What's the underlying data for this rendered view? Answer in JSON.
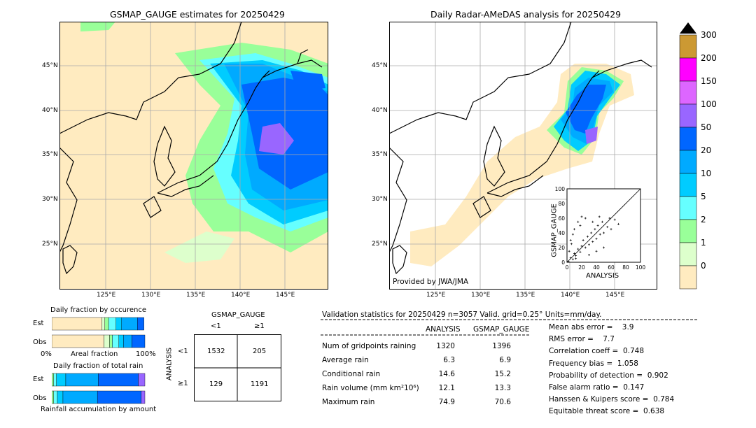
{
  "left_map": {
    "title": "GSMAP_GAUGE estimates for 20250429",
    "lat_labels": [
      "45°N",
      "40°N",
      "35°N",
      "30°N",
      "25°N"
    ],
    "lon_labels": [
      "125°E",
      "130°E",
      "135°E",
      "140°E",
      "145°E"
    ]
  },
  "right_map": {
    "title": "Daily Radar-AMeDAS analysis for 20250429",
    "lat_labels": [
      "45°N",
      "40°N",
      "35°N",
      "30°N",
      "25°N"
    ],
    "lon_labels": [
      "125°E",
      "130°E",
      "135°E",
      "140°E",
      "145°E"
    ],
    "credit": "Provided by JWA/JMA"
  },
  "colorbar": {
    "levels": [
      "300",
      "200",
      "150",
      "100",
      "50",
      "20",
      "10",
      "5",
      "2",
      "1",
      "0"
    ],
    "colors": [
      "#cc9933",
      "#ff00ff",
      "#dd66ff",
      "#9966ff",
      "#0066ff",
      "#00aaff",
      "#00ccff",
      "#66ffff",
      "#99ff99",
      "#ddffcc",
      "#ffebc0"
    ]
  },
  "scatter": {
    "xlabel": "ANALYSIS",
    "ylabel": "GSMAP_GAUGE",
    "ticks": [
      "0",
      "20",
      "40",
      "60",
      "80",
      "100"
    ]
  },
  "occurrence": {
    "title": "Daily fraction by occurence",
    "rows": [
      "Est",
      "Obs"
    ],
    "axis_left": "0%",
    "axis_mid": "Areal fraction",
    "axis_right": "100%"
  },
  "total_rain": {
    "title": "Daily fraction of total rain",
    "rows": [
      "Est",
      "Obs"
    ],
    "footer": "Rainfall accumulation by amount"
  },
  "contingency": {
    "col_header": "GSMAP_GAUGE",
    "col_lt": "<1",
    "col_ge": "≥1",
    "row_header": "ANALYSIS",
    "row_lt": "<1",
    "row_ge": "≥1",
    "cells": [
      "1532",
      "205",
      "129",
      "1191"
    ]
  },
  "validation": {
    "header": "Validation statistics for 20250429  n=3057 Valid. grid=0.25° Units=mm/day.",
    "col_analysis": "ANALYSIS",
    "col_gsmap": "GSMAP_GAUGE",
    "rows": [
      {
        "label": "Num of gridpoints raining",
        "analysis": "1320",
        "gsmap": "1396"
      },
      {
        "label": "Average rain",
        "analysis": "6.3",
        "gsmap": "6.9"
      },
      {
        "label": "Conditional rain",
        "analysis": "14.6",
        "gsmap": "15.2"
      },
      {
        "label": "Rain volume (mm km²10⁶)",
        "analysis": "12.1",
        "gsmap": "13.3"
      },
      {
        "label": "Maximum rain",
        "analysis": "74.9",
        "gsmap": "70.6"
      }
    ],
    "scores": [
      "Mean abs error =    3.9",
      "RMS error =    7.7",
      "Correlation coeff =  0.748",
      "Frequency bias =  1.058",
      "Probability of detection =  0.902",
      "False alarm ratio =  0.147",
      "Hanssen & Kuipers score =  0.784",
      "Equitable threat score =  0.638"
    ]
  },
  "chart_data": [
    {
      "type": "heatmap",
      "title": "GSMAP_GAUGE estimates for 20250429",
      "xlabel": "",
      "ylabel": "",
      "xlim_deg_E": [
        120,
        149
      ],
      "ylim_deg_N": [
        20,
        50
      ],
      "legend": "colorbar right, levels mm/day"
    },
    {
      "type": "heatmap",
      "title": "Daily Radar-AMeDAS analysis for 20250429",
      "xlabel": "",
      "ylabel": "",
      "xlim_deg_E": [
        120,
        149
      ],
      "ylim_deg_N": [
        20,
        50
      ]
    },
    {
      "type": "scatter",
      "xlabel": "ANALYSIS",
      "ylabel": "GSMAP_GAUGE",
      "xlim": [
        0,
        100
      ],
      "ylim": [
        0,
        100
      ],
      "points_sample": [
        [
          2,
          1
        ],
        [
          5,
          6
        ],
        [
          8,
          4
        ],
        [
          10,
          12
        ],
        [
          12,
          9
        ],
        [
          15,
          18
        ],
        [
          18,
          14
        ],
        [
          20,
          22
        ],
        [
          22,
          30
        ],
        [
          25,
          20
        ],
        [
          28,
          35
        ],
        [
          30,
          24
        ],
        [
          33,
          40
        ],
        [
          35,
          28
        ],
        [
          38,
          45
        ],
        [
          40,
          32
        ],
        [
          42,
          50
        ],
        [
          45,
          38
        ],
        [
          48,
          55
        ],
        [
          50,
          40
        ],
        [
          55,
          48
        ],
        [
          60,
          45
        ],
        [
          65,
          58
        ],
        [
          70,
          52
        ],
        [
          10,
          45
        ],
        [
          15,
          55
        ],
        [
          20,
          62
        ],
        [
          5,
          30
        ],
        [
          8,
          38
        ],
        [
          30,
          10
        ],
        [
          40,
          15
        ],
        [
          50,
          20
        ],
        [
          3,
          15
        ],
        [
          6,
          25
        ],
        [
          12,
          5
        ],
        [
          25,
          60
        ],
        [
          18,
          50
        ],
        [
          35,
          55
        ],
        [
          44,
          62
        ],
        [
          58,
          60
        ]
      ]
    },
    {
      "type": "bar",
      "title": "Daily fraction by occurence",
      "categories": [
        "Est",
        "Obs"
      ],
      "series": [
        {
          "values": [
            0.54,
            0.56
          ]
        },
        {
          "values": [
            0.03,
            0.06
          ]
        },
        {
          "values": [
            0.04,
            0.03
          ]
        },
        {
          "values": [
            0.08,
            0.07
          ]
        },
        {
          "values": [
            0.06,
            0.05
          ]
        },
        {
          "values": [
            0.17,
            0.09
          ]
        },
        {
          "values": [
            0.07,
            0.14
          ]
        }
      ]
    },
    {
      "type": "bar",
      "title": "Daily fraction of total rain",
      "categories": [
        "Est",
        "Obs"
      ],
      "series": [
        {
          "values": [
            0.02,
            0.02
          ]
        },
        {
          "values": [
            0.03,
            0.04
          ]
        },
        {
          "values": [
            0.1,
            0.06
          ]
        },
        {
          "values": [
            0.35,
            0.37
          ]
        },
        {
          "values": [
            0.43,
            0.47
          ]
        },
        {
          "values": [
            0.07,
            0.04
          ]
        }
      ]
    }
  ]
}
